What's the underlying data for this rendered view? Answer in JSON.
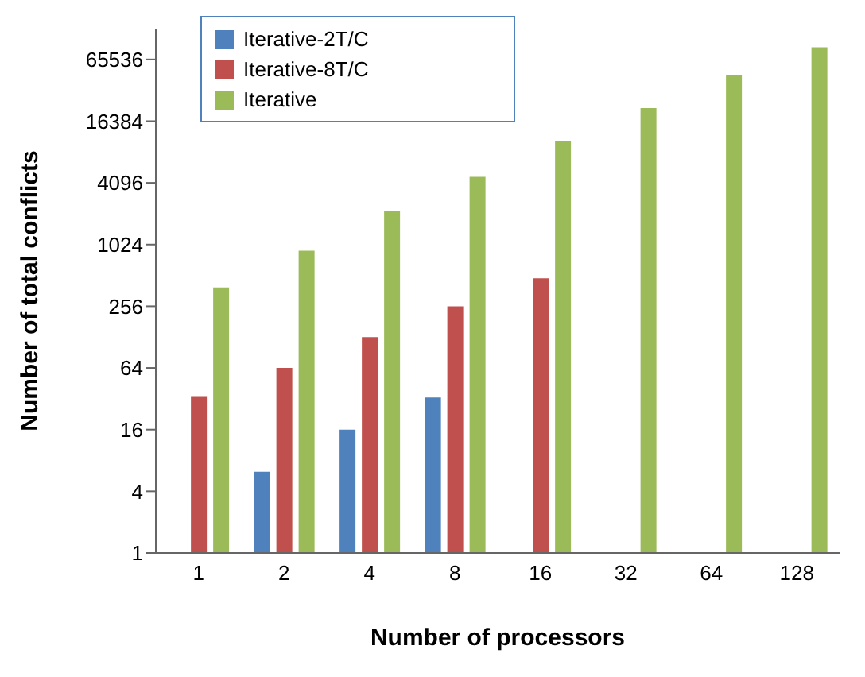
{
  "chart_data": {
    "type": "bar",
    "xlabel": "Number of processors",
    "ylabel": "Number of total conflicts",
    "categories": [
      "1",
      "2",
      "4",
      "8",
      "16",
      "32",
      "64",
      "128"
    ],
    "series": [
      {
        "name": "Iterative-2T/C",
        "color": "#4f81bd",
        "values": [
          null,
          6.2,
          16,
          33,
          null,
          null,
          null,
          null
        ]
      },
      {
        "name": "Iterative-8T/C",
        "color": "#c0504d",
        "values": [
          34,
          64,
          128,
          256,
          480,
          null,
          null,
          null
        ]
      },
      {
        "name": "Iterative",
        "color": "#9bbb59",
        "values": [
          390,
          890,
          2200,
          4700,
          10400,
          22000,
          46000,
          86000
        ]
      }
    ],
    "log": "y",
    "ylim": [
      1,
      131072
    ],
    "yticks": [
      1,
      4,
      16,
      64,
      256,
      1024,
      4096,
      16384,
      65536
    ],
    "grid": false,
    "legend": "top left"
  }
}
